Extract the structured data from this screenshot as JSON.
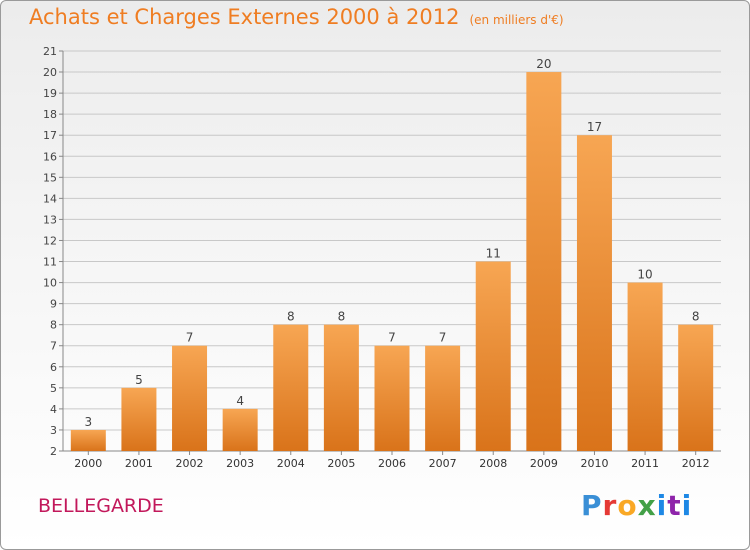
{
  "title": "Achats et Charges Externes 2000 à 2012",
  "unit_label": "(en milliers d'€)",
  "place": "BELLEGARDE",
  "brand": "Proxiti",
  "colors": {
    "bar_top": "#f7a653",
    "bar_bottom": "#d9731a",
    "title": "#ef7d22",
    "place": "#c2185b",
    "grid": "#c8c8c8"
  },
  "chart_data": {
    "type": "bar",
    "title": "Achats et Charges Externes 2000 à 2012",
    "xlabel": "",
    "ylabel": "",
    "categories": [
      "2000",
      "2001",
      "2002",
      "2003",
      "2004",
      "2005",
      "2006",
      "2007",
      "2008",
      "2009",
      "2010",
      "2011",
      "2012"
    ],
    "values": [
      3,
      5,
      7,
      4,
      8,
      8,
      7,
      7,
      11,
      20,
      17,
      10,
      8
    ],
    "ylim": [
      2,
      21
    ],
    "yticks": [
      2,
      3,
      4,
      5,
      6,
      7,
      8,
      9,
      10,
      11,
      12,
      13,
      14,
      15,
      16,
      17,
      18,
      19,
      20,
      21
    ],
    "grid": true,
    "data_labels": true
  }
}
